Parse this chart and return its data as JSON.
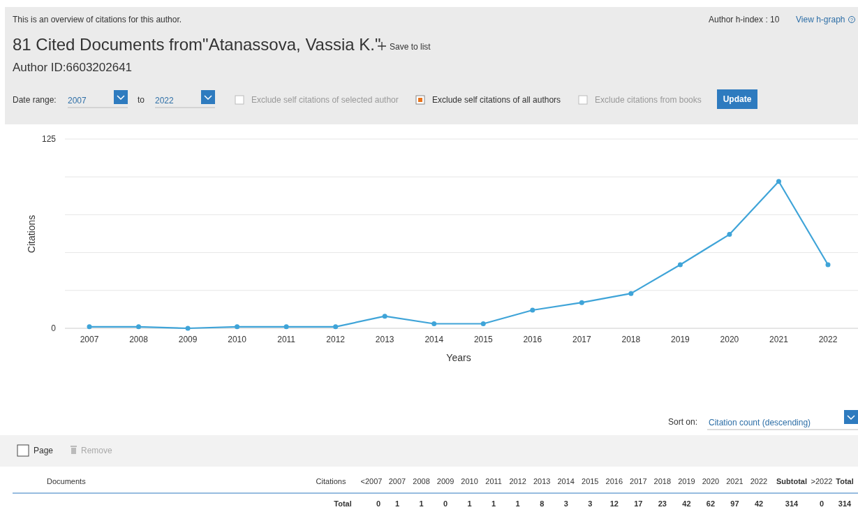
{
  "chart_data": {
    "type": "line",
    "title": "81 Cited Documents from\"Atanassova, Vassia K.\"",
    "xlabel": "Years",
    "ylabel": "Citations",
    "categories": [
      "2007",
      "2008",
      "2009",
      "2010",
      "2011",
      "2012",
      "2013",
      "2014",
      "2015",
      "2016",
      "2017",
      "2018",
      "2019",
      "2020",
      "2021",
      "2022"
    ],
    "series": [
      {
        "color": "#3fa4d8",
        "values": [
          1,
          1,
          0,
          1,
          1,
          1,
          8,
          3,
          3,
          12,
          17,
          23,
          42,
          62,
          97,
          42
        ]
      }
    ],
    "ylim": [
      0,
      125
    ],
    "yticks": [
      0,
      {
        "value": 25,
        "label": null
      },
      {
        "value": 50,
        "label": null
      },
      {
        "value": 75,
        "label": null
      },
      {
        "value": 100,
        "label": null
      },
      125
    ],
    "grid": "y",
    "marker": "circle",
    "annotations": [
      "This is an overview of citations for this author.",
      "Author h-index : 10",
      "View h-graph",
      "Save to list",
      "Author ID:6603202641",
      "Date range:",
      "2007",
      "to",
      "2022",
      "Exclude self citations of selected author",
      "Exclude self citations of all authors",
      "Exclude citations from books",
      "Update",
      "Sort on:",
      "Citation count (descending)",
      "Page",
      "Remove",
      "Documents",
      "Citations",
      "<2007",
      "Subtotal",
      ">2022",
      "Total",
      "Total",
      "0",
      "314",
      "0",
      "314",
      "1",
      "1",
      "0",
      "1",
      "1",
      "1",
      "8",
      "3",
      "3",
      "12",
      "17",
      "23",
      "42",
      "62",
      "97",
      "42",
      "?"
    ]
  }
}
